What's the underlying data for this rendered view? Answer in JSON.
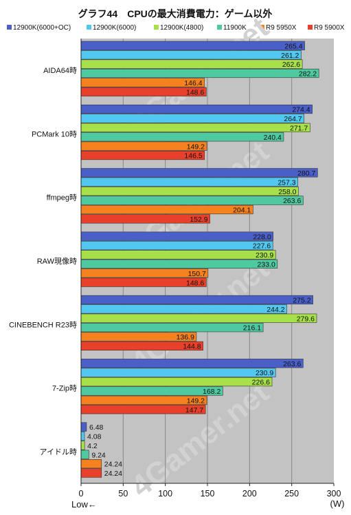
{
  "chart_data": {
    "type": "bar",
    "orientation": "horizontal",
    "title": "グラフ44　CPUの最大消費電力：ゲーム以外",
    "categories": [
      "AIDA64時",
      "PCMark 10時",
      "ffmpeg時",
      "RAW現像時",
      "CINEBENCH R23時",
      "7-Zip時",
      "アイドル時"
    ],
    "series": [
      {
        "name": "12900K(6000+OC)",
        "color": "#4a5fc8",
        "values": [
          265.4,
          274.4,
          280.7,
          228.0,
          275.2,
          263.6,
          6.48
        ],
        "labels": [
          "265.4",
          "274.4",
          "280.7",
          "228.0",
          "275.2",
          "263.6",
          "6.48"
        ]
      },
      {
        "name": "12900K(6000)",
        "color": "#52c8f0",
        "values": [
          261.2,
          264.7,
          257.3,
          227.6,
          244.2,
          230.9,
          4.08
        ],
        "labels": [
          "261.2",
          "264.7",
          "257.3",
          "227.6",
          "244.2",
          "230.9",
          "4.08"
        ]
      },
      {
        "name": "12900K(4800)",
        "color": "#a8e04a",
        "values": [
          262.6,
          271.7,
          258.0,
          230.9,
          279.6,
          226.6,
          4.2
        ],
        "labels": [
          "262.6",
          "271.7",
          "258.0",
          "230.9",
          "279.6",
          "226.6",
          "4.2"
        ]
      },
      {
        "name": "11900K",
        "color": "#4ec9a0",
        "values": [
          282.2,
          240.4,
          263.6,
          233.0,
          216.1,
          168.2,
          9.24
        ],
        "labels": [
          "282.2",
          "240.4",
          "263.6",
          "233.0",
          "216.1",
          "168.2",
          "9.24"
        ]
      },
      {
        "name": "R9 5950X",
        "color": "#f5821f",
        "values": [
          146.4,
          149.2,
          204.1,
          150.7,
          136.9,
          149.2,
          24.24
        ],
        "labels": [
          "146.4",
          "149.2",
          "204.1",
          "150.7",
          "136.9",
          "149.2",
          "24.24"
        ]
      },
      {
        "name": "R9 5900X",
        "color": "#e8402a",
        "values": [
          148.6,
          146.5,
          152.9,
          148.6,
          144.8,
          147.7,
          24.24
        ],
        "labels": [
          "148.6",
          "146.5",
          "152.9",
          "148.6",
          "144.8",
          "147.7",
          "24.24"
        ]
      }
    ],
    "xlim": [
      0,
      300
    ],
    "xticks": [
      "0",
      "50",
      "100",
      "150",
      "200",
      "250",
      "300"
    ],
    "xunit": "(W)",
    "direction_note": "Low←",
    "grid": true,
    "legend_position": "top",
    "watermark": "4Gamer.net"
  }
}
